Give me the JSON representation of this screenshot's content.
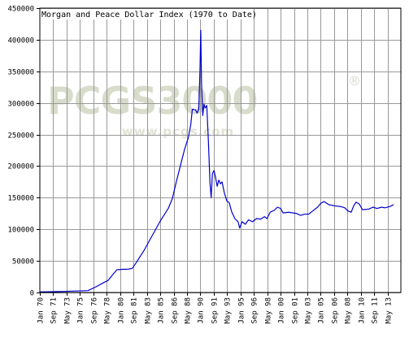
{
  "chart_data": {
    "type": "line",
    "title": "Morgan and Peace Dollar Index (1970 to Date)",
    "xlabel": "",
    "ylabel": "",
    "ylim": [
      0,
      450000
    ],
    "y_ticks": [
      0,
      50000,
      100000,
      150000,
      200000,
      250000,
      300000,
      350000,
      400000,
      450000
    ],
    "y_tick_labels": [
      "0",
      "50000",
      "100000",
      "150000",
      "200000",
      "250000",
      "300000",
      "350000",
      "400000",
      "450000"
    ],
    "x_tick_labels": [
      "Jan 70",
      "Sep 71",
      "May 73",
      "Jan 75",
      "Sep 76",
      "May 78",
      "Jan 80",
      "Sep 81",
      "May 83",
      "Jan 85",
      "Sep 86",
      "May 88",
      "Jan 90",
      "Sep 91",
      "May 93",
      "Jan 95",
      "Sep 96",
      "May 98",
      "Jan 00",
      "Sep 01",
      "May 03",
      "Jan 05",
      "Sep 06",
      "May 08",
      "Jan 10",
      "Sep 11",
      "May 13"
    ],
    "grid": true,
    "line_color": "#0000cc",
    "watermark": {
      "brand": "PCGS3000",
      "url": "www.pcgs.com",
      "mark": "®"
    },
    "series": [
      {
        "points": [
          [
            1970.0,
            1000
          ],
          [
            1971.0,
            1200
          ],
          [
            1972.0,
            1400
          ],
          [
            1973.0,
            1700
          ],
          [
            1974.0,
            2200
          ],
          [
            1975.0,
            2500
          ],
          [
            1976.0,
            3000
          ],
          [
            1977.0,
            9000
          ],
          [
            1978.0,
            16000
          ],
          [
            1978.5,
            19000
          ],
          [
            1979.0,
            27000
          ],
          [
            1979.6,
            36000
          ],
          [
            1980.0,
            36500
          ],
          [
            1981.0,
            37000
          ],
          [
            1981.5,
            38000
          ],
          [
            1982.0,
            47000
          ],
          [
            1983.0,
            67000
          ],
          [
            1984.0,
            90000
          ],
          [
            1985.0,
            113000
          ],
          [
            1986.0,
            133000
          ],
          [
            1986.5,
            148000
          ],
          [
            1987.0,
            175000
          ],
          [
            1987.6,
            205000
          ],
          [
            1988.0,
            225000
          ],
          [
            1988.5,
            245000
          ],
          [
            1988.8,
            265000
          ],
          [
            1989.0,
            290000
          ],
          [
            1989.4,
            289000
          ],
          [
            1989.6,
            284000
          ],
          [
            1989.8,
            290000
          ],
          [
            1989.95,
            350000
          ],
          [
            1990.05,
            415000
          ],
          [
            1990.15,
            330000
          ],
          [
            1990.3,
            280000
          ],
          [
            1990.45,
            298000
          ],
          [
            1990.6,
            292000
          ],
          [
            1990.8,
            296000
          ],
          [
            1991.0,
            240000
          ],
          [
            1991.2,
            173000
          ],
          [
            1991.35,
            150000
          ],
          [
            1991.5,
            188000
          ],
          [
            1991.7,
            193000
          ],
          [
            1991.9,
            182000
          ],
          [
            1992.1,
            168000
          ],
          [
            1992.3,
            178000
          ],
          [
            1992.5,
            172000
          ],
          [
            1992.7,
            175000
          ],
          [
            1993.0,
            157000
          ],
          [
            1993.3,
            145000
          ],
          [
            1993.6,
            142000
          ],
          [
            1993.9,
            128000
          ],
          [
            1994.3,
            117000
          ],
          [
            1994.7,
            112000
          ],
          [
            1994.9,
            102000
          ],
          [
            1995.2,
            112000
          ],
          [
            1995.6,
            108000
          ],
          [
            1996.0,
            115000
          ],
          [
            1996.5,
            112000
          ],
          [
            1997.0,
            117000
          ],
          [
            1997.5,
            116000
          ],
          [
            1998.0,
            120000
          ],
          [
            1998.3,
            117000
          ],
          [
            1998.7,
            127000
          ],
          [
            1999.2,
            130000
          ],
          [
            1999.6,
            135000
          ],
          [
            2000.0,
            133000
          ],
          [
            2000.3,
            126000
          ],
          [
            2001.0,
            127000
          ],
          [
            2002.0,
            125000
          ],
          [
            2002.5,
            122000
          ],
          [
            2003.0,
            124000
          ],
          [
            2003.5,
            124000
          ],
          [
            2004.0,
            129000
          ],
          [
            2004.6,
            135000
          ],
          [
            2005.0,
            141000
          ],
          [
            2005.4,
            144000
          ],
          [
            2006.0,
            139000
          ],
          [
            2006.8,
            137000
          ],
          [
            2007.5,
            136000
          ],
          [
            2008.0,
            134000
          ],
          [
            2008.4,
            129000
          ],
          [
            2008.8,
            127000
          ],
          [
            2009.1,
            137000
          ],
          [
            2009.4,
            143000
          ],
          [
            2009.8,
            140000
          ],
          [
            2010.2,
            131000
          ],
          [
            2011.0,
            132000
          ],
          [
            2011.5,
            135000
          ],
          [
            2012.0,
            133000
          ],
          [
            2012.6,
            135000
          ],
          [
            2013.0,
            134000
          ],
          [
            2013.6,
            136000
          ],
          [
            2014.1,
            139000
          ]
        ]
      }
    ]
  }
}
